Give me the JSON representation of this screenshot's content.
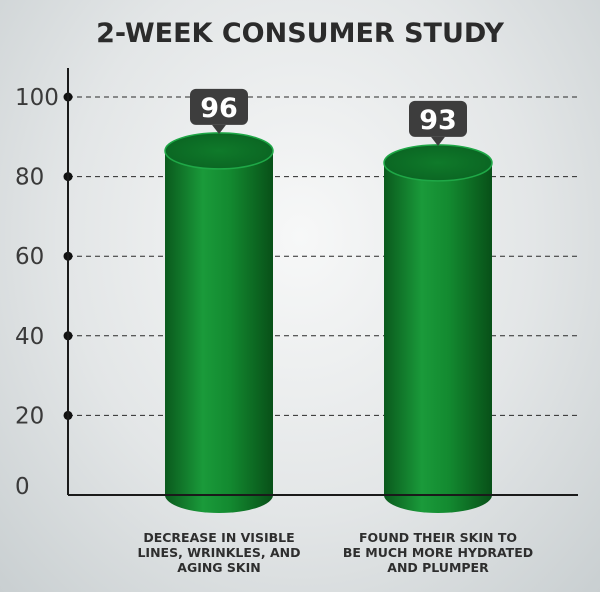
{
  "chart_data": {
    "type": "bar",
    "title": "2-WEEK CONSUMER STUDY",
    "categories": [
      [
        "DECREASE IN VISIBLE",
        "LINES, WRINKLES, AND",
        "AGING SKIN"
      ],
      [
        "FOUND THEIR SKIN TO",
        "BE MUCH MORE HYDRATED",
        "AND PLUMPER"
      ]
    ],
    "values": [
      96,
      93
    ],
    "data_labels": [
      "96",
      "93"
    ],
    "y_ticks": [
      0,
      20,
      40,
      60,
      80,
      100
    ],
    "ylim": [
      0,
      100
    ],
    "grid": true,
    "bar_color": "#118a2f",
    "label_box_color": "#3d3d3d"
  }
}
